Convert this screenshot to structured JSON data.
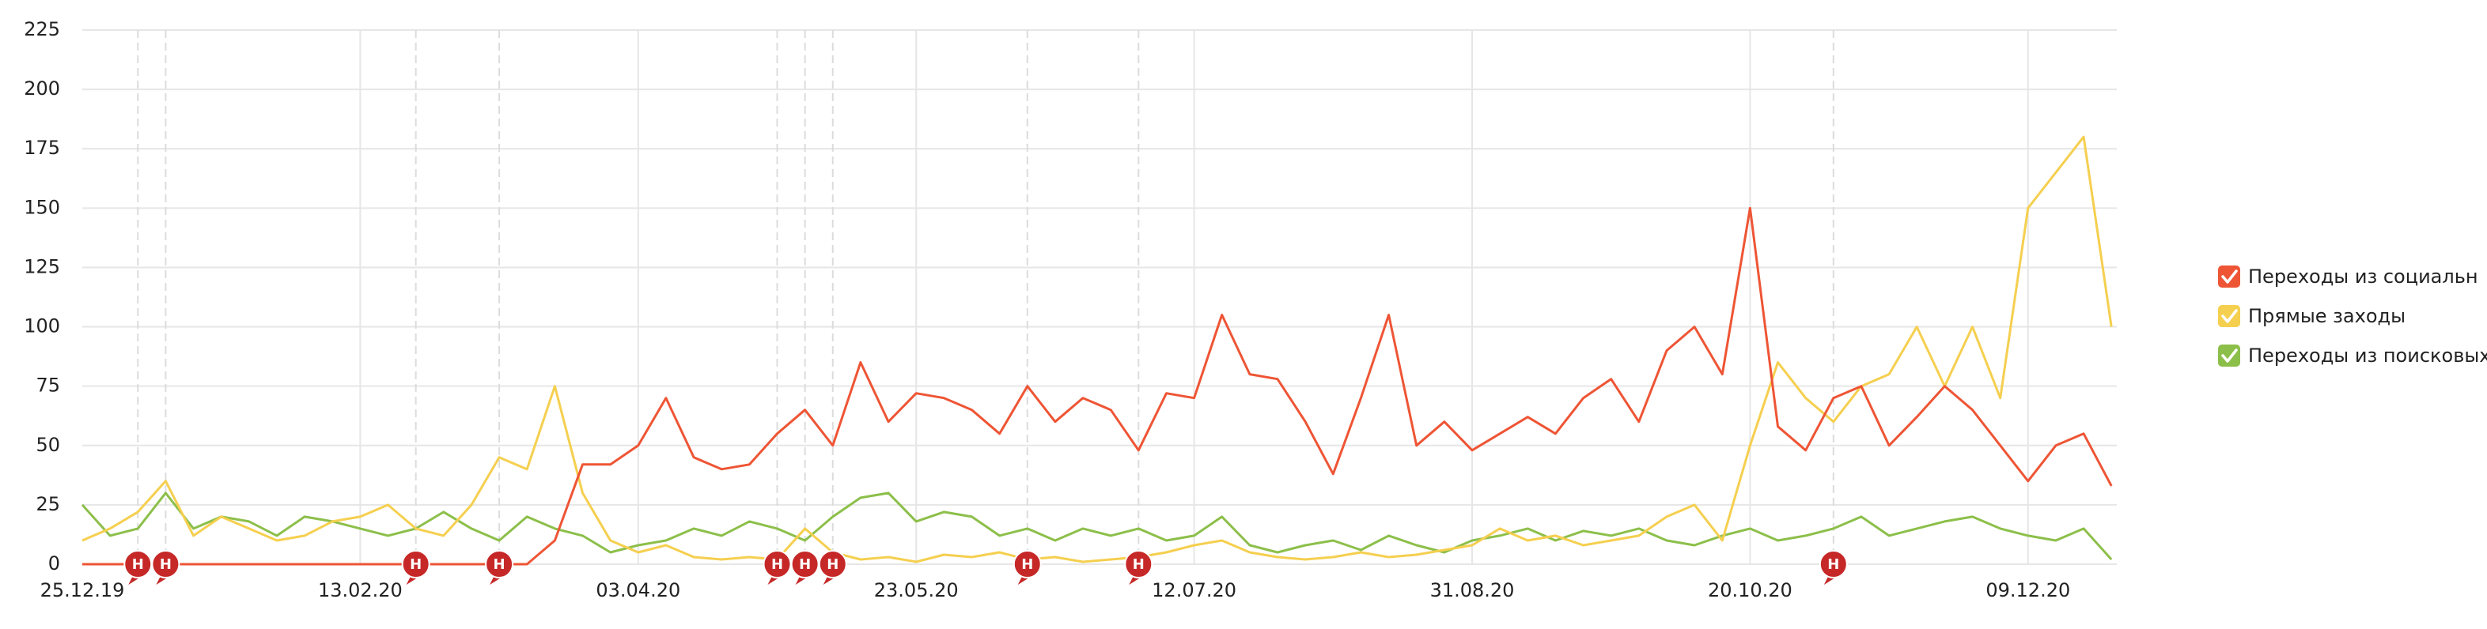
{
  "chart_data": {
    "type": "line",
    "categories": [
      "25.12.19",
      null,
      null,
      null,
      null,
      null,
      null,
      null,
      null,
      null,
      "13.02.20",
      null,
      null,
      null,
      null,
      null,
      null,
      null,
      null,
      null,
      "03.04.20",
      null,
      null,
      null,
      null,
      null,
      null,
      null,
      null,
      null,
      "23.05.20",
      null,
      null,
      null,
      null,
      null,
      null,
      null,
      null,
      null,
      "12.07.20",
      null,
      null,
      null,
      null,
      null,
      null,
      null,
      null,
      null,
      "31.08.20",
      null,
      null,
      null,
      null,
      null,
      null,
      null,
      null,
      null,
      "20.10.20",
      null,
      null,
      null,
      null,
      null,
      null,
      null,
      null,
      null,
      "09.12.20",
      null,
      null,
      null
    ],
    "series": [
      {
        "name": "Переходы из социальн",
        "color": "#ee5535",
        "values": [
          0,
          0,
          0,
          0,
          0,
          0,
          0,
          0,
          0,
          0,
          0,
          0,
          0,
          0,
          0,
          0,
          0,
          10,
          42,
          42,
          50,
          70,
          45,
          40,
          42,
          55,
          65,
          50,
          85,
          60,
          72,
          70,
          65,
          55,
          75,
          60,
          70,
          65,
          48,
          72,
          70,
          105,
          80,
          78,
          60,
          38,
          70,
          105,
          50,
          60,
          48,
          55,
          62,
          55,
          70,
          78,
          60,
          90,
          100,
          80,
          150,
          58,
          48,
          70,
          75,
          50,
          62,
          75,
          65,
          50,
          35,
          50,
          55,
          33
        ]
      },
      {
        "name": "Прямые заходы",
        "color": "#f5cf4f",
        "values": [
          10,
          15,
          22,
          35,
          12,
          20,
          15,
          10,
          12,
          18,
          20,
          25,
          15,
          12,
          25,
          45,
          40,
          75,
          30,
          10,
          5,
          8,
          3,
          2,
          3,
          2,
          15,
          5,
          2,
          3,
          1,
          4,
          3,
          5,
          2,
          3,
          1,
          2,
          3,
          5,
          8,
          10,
          5,
          3,
          2,
          3,
          5,
          3,
          4,
          6,
          8,
          15,
          10,
          12,
          8,
          10,
          12,
          20,
          25,
          10,
          50,
          85,
          70,
          60,
          75,
          80,
          100,
          75,
          100,
          70,
          150,
          165,
          180,
          100
        ]
      },
      {
        "name": "Переходы из поисковых",
        "color": "#8cbf4a",
        "values": [
          25,
          12,
          15,
          30,
          15,
          20,
          18,
          12,
          20,
          18,
          15,
          12,
          15,
          22,
          15,
          10,
          20,
          15,
          12,
          5,
          8,
          10,
          15,
          12,
          18,
          15,
          10,
          20,
          28,
          30,
          18,
          22,
          20,
          12,
          15,
          10,
          15,
          12,
          15,
          10,
          12,
          20,
          8,
          5,
          8,
          10,
          6,
          12,
          8,
          5,
          10,
          12,
          15,
          10,
          14,
          12,
          15,
          10,
          8,
          12,
          15,
          10,
          12,
          15,
          20,
          12,
          15,
          18,
          20,
          15,
          12,
          10,
          15,
          2
        ]
      }
    ],
    "ylim": [
      0,
      225
    ],
    "yticks": [
      0,
      25,
      50,
      75,
      100,
      125,
      150,
      175,
      200,
      225
    ],
    "grid": true,
    "legend": "right",
    "annotations": [
      {
        "text": "Н",
        "at": 2
      },
      {
        "text": "Н",
        "at": 3
      },
      {
        "text": "Н",
        "at": 12
      },
      {
        "text": "Н",
        "at": 15
      },
      {
        "text": "Н",
        "at": 25
      },
      {
        "text": "Н",
        "at": 26
      },
      {
        "text": "Н",
        "at": 27
      },
      {
        "text": "Н",
        "at": 34
      },
      {
        "text": "Н",
        "at": 38
      },
      {
        "text": "Н",
        "at": 63
      }
    ],
    "annotation_color": "#c62828"
  }
}
